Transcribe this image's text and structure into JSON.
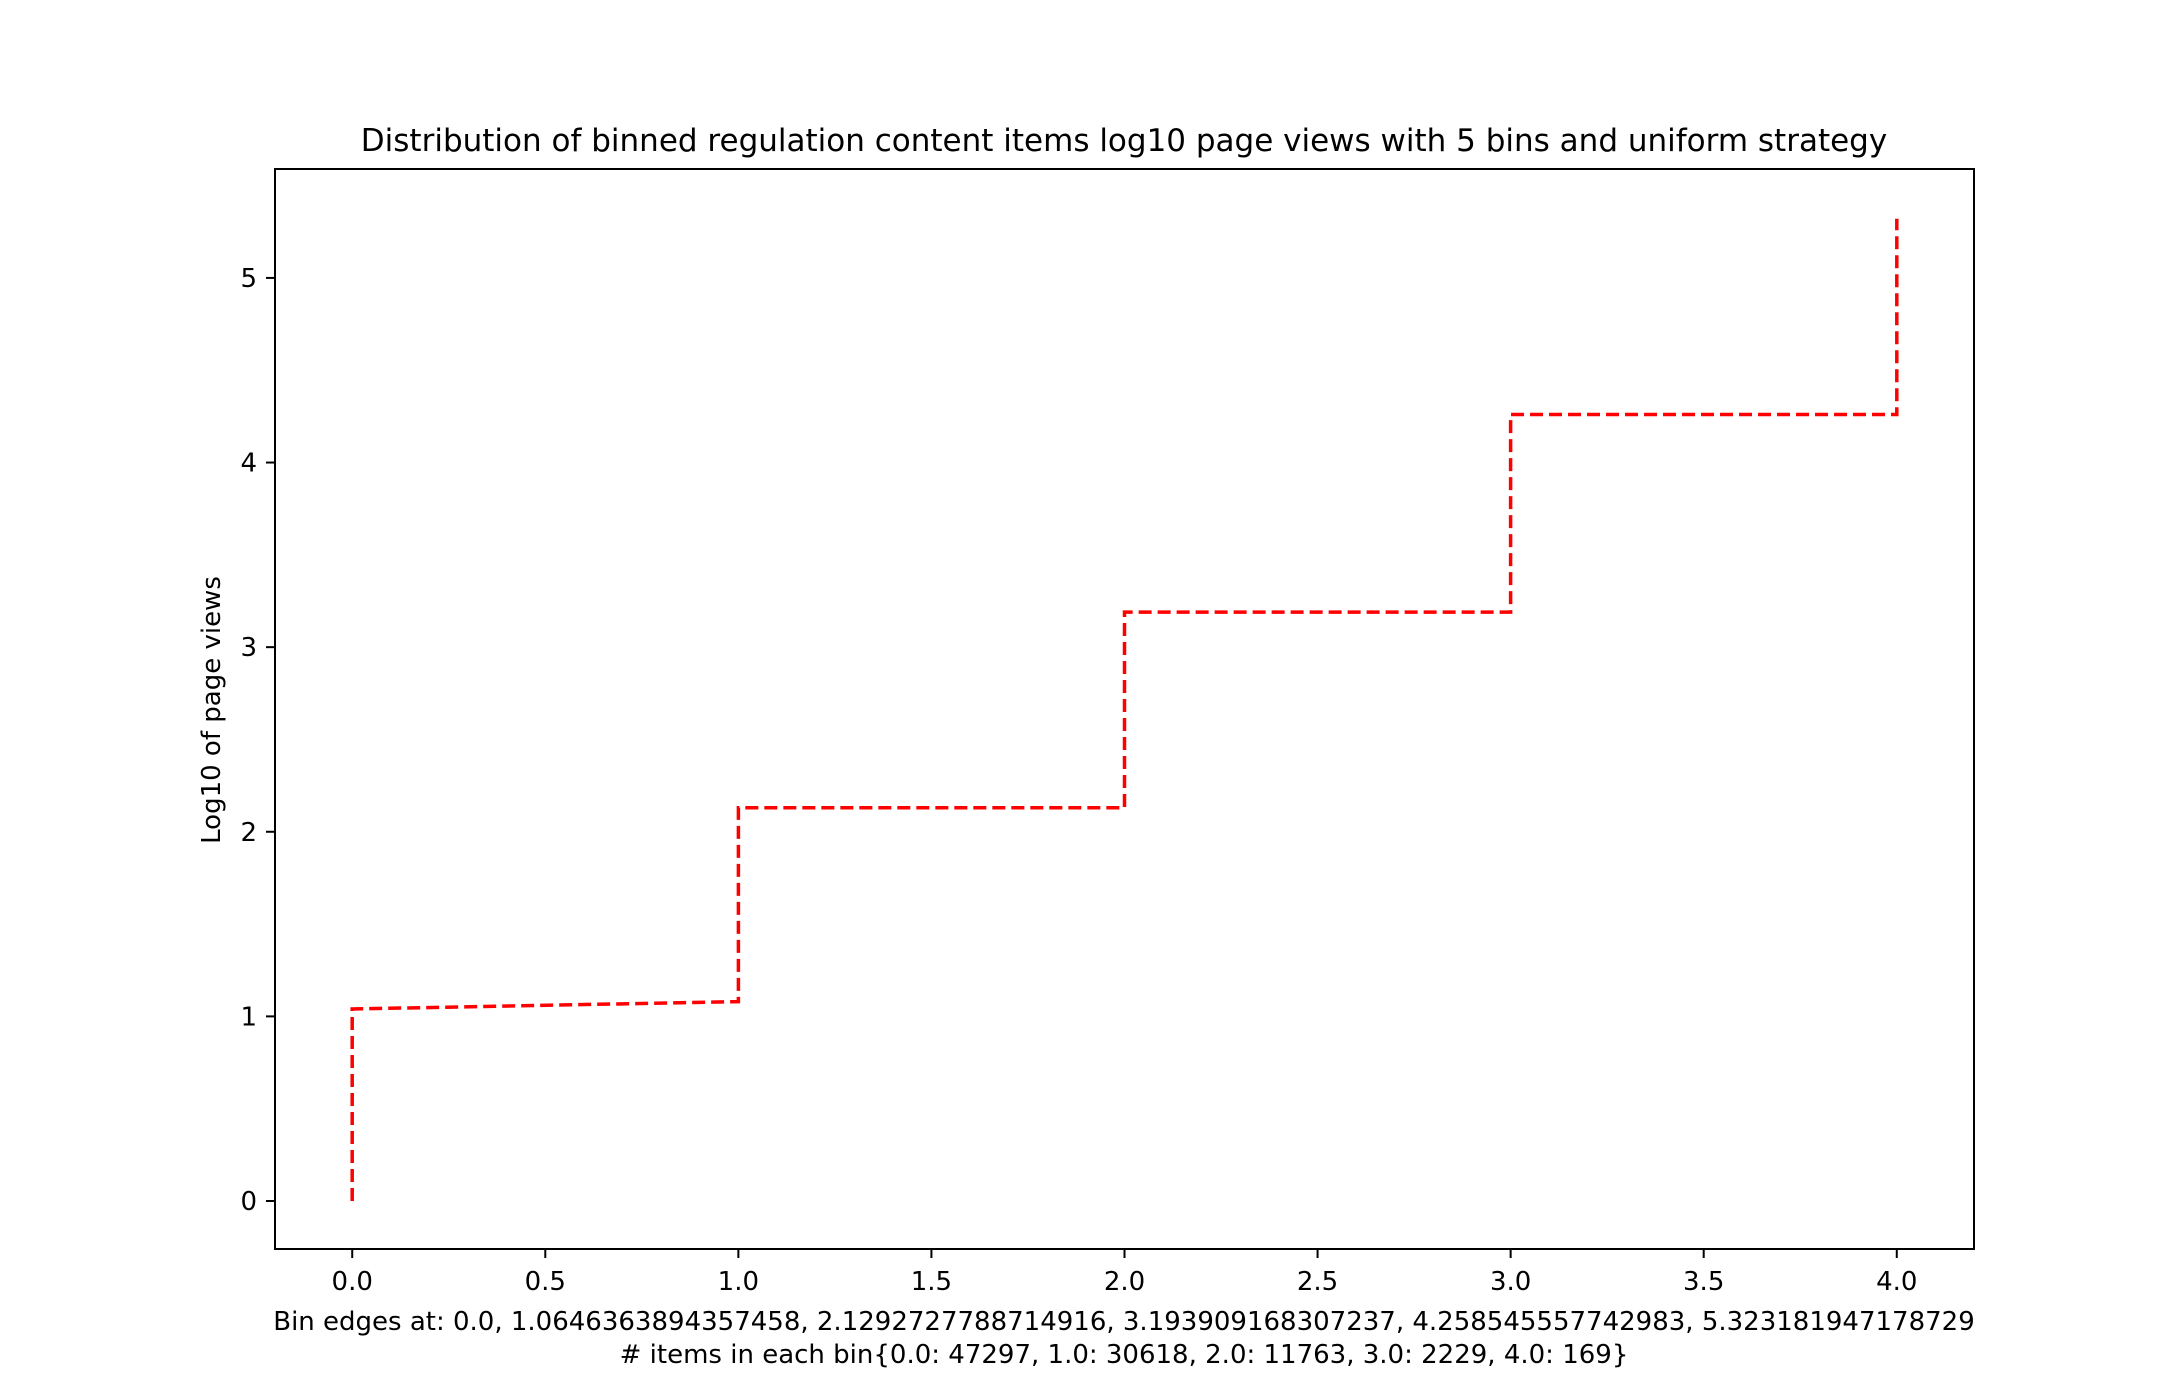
{
  "chart_data": {
    "type": "line",
    "title": "Distribution of binned regulation content items log10 page views with 5 bins and uniform strategy",
    "xlabel_lines": [
      "Bin edges at: 0.0, 1.0646363894357458, 2.1292727788714916, 3.193909168307237, 4.258545557742983, 5.323181947178729",
      "# items in each bin{0.0: 47297, 1.0: 30618, 2.0: 11763, 3.0: 2229, 4.0: 169}"
    ],
    "ylabel": "Log10 of page views",
    "xlim": [
      -0.2,
      4.2
    ],
    "ylim": [
      -0.26,
      5.59
    ],
    "x_ticks": [
      0.0,
      0.5,
      1.0,
      1.5,
      2.0,
      2.5,
      3.0,
      3.5,
      4.0
    ],
    "x_tick_labels": [
      "0.0",
      "0.5",
      "1.0",
      "1.5",
      "2.0",
      "2.5",
      "3.0",
      "3.5",
      "4.0"
    ],
    "y_ticks": [
      0,
      1,
      2,
      3,
      4,
      5
    ],
    "y_tick_labels": [
      "0",
      "1",
      "2",
      "3",
      "4",
      "5"
    ],
    "grid": false,
    "series": [
      {
        "color": "#ff0000",
        "line_style": "dashed",
        "points": [
          {
            "x": 0.0,
            "y": 0.0
          },
          {
            "x": 0.0,
            "y": 1.04
          },
          {
            "x": 1.0,
            "y": 1.08
          },
          {
            "x": 1.0,
            "y": 2.13
          },
          {
            "x": 2.0,
            "y": 2.13
          },
          {
            "x": 2.0,
            "y": 3.19
          },
          {
            "x": 3.0,
            "y": 3.19
          },
          {
            "x": 3.0,
            "y": 4.26
          },
          {
            "x": 4.0,
            "y": 4.26
          },
          {
            "x": 4.0,
            "y": 5.32
          }
        ]
      }
    ]
  }
}
